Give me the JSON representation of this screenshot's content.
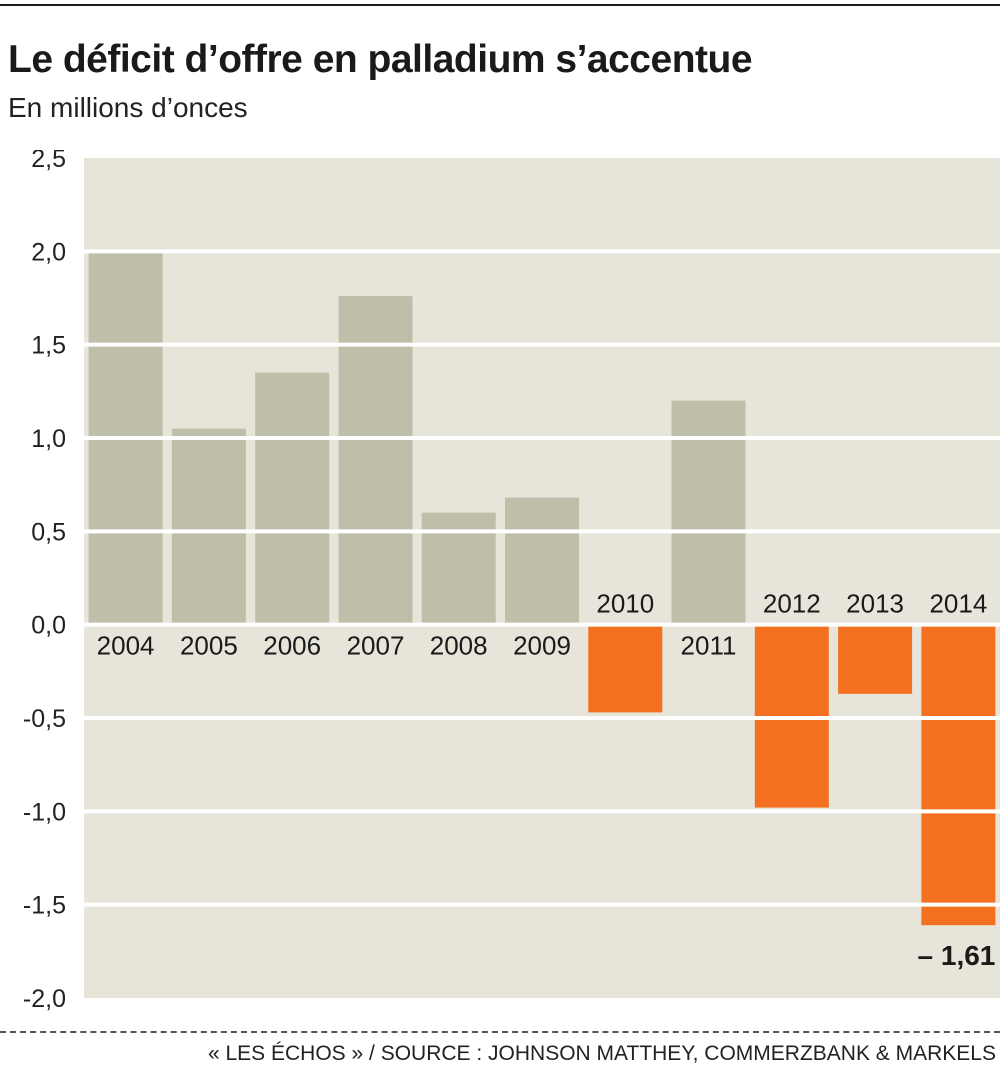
{
  "title": "Le déficit d’offre en palladium s’accentue",
  "subtitle": "En millions d’onces",
  "source": "« LES ÉCHOS » / SOURCE : JOHNSON MATTHEY, COMMERZBANK & MARKELS",
  "colors": {
    "background": "#e7e4da",
    "positive": "#bfbea9",
    "negative": "#f37021",
    "gridline": "#ffffff"
  },
  "chart_data": {
    "type": "bar",
    "title": "Le déficit d’offre en palladium s’accentue",
    "ylabel": "En millions d’onces",
    "categories": [
      "2004",
      "2005",
      "2006",
      "2007",
      "2008",
      "2009",
      "2010",
      "2011",
      "2012",
      "2013",
      "2014"
    ],
    "values": [
      1.99,
      1.05,
      1.35,
      1.76,
      0.6,
      0.68,
      -0.47,
      1.2,
      -0.98,
      -0.37,
      -1.61
    ],
    "ylim": [
      -2.0,
      2.5
    ],
    "yticks": [
      2.5,
      2.0,
      1.5,
      1.0,
      0.5,
      0.0,
      -0.5,
      -1.0,
      -1.5,
      -2.0
    ],
    "ytick_labels": [
      "2,5",
      "2,0",
      "1,5",
      "1,0",
      "0,5",
      "0,0",
      "-0,5",
      "-1,0",
      "-1,5",
      "-2,0"
    ],
    "grid": true,
    "annotations": [
      {
        "category": "2014",
        "text": "– 1,61"
      }
    ]
  }
}
